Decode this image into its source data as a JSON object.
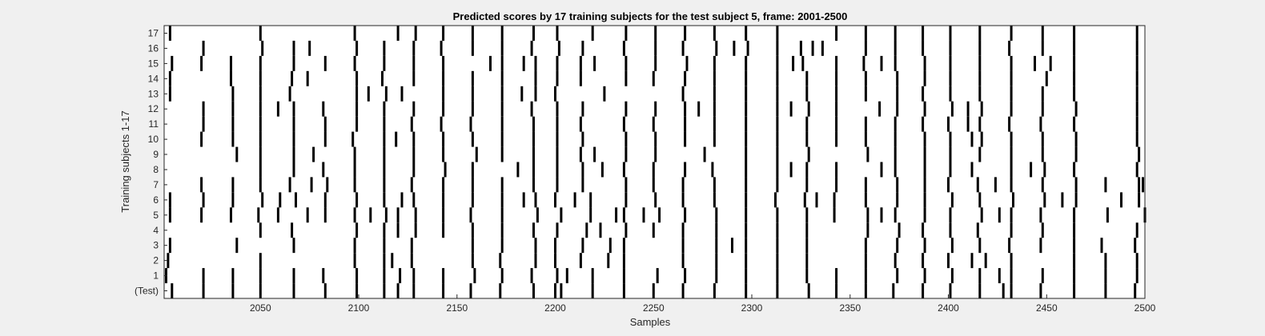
{
  "chart_data": {
    "type": "heatmap",
    "title": "Predicted scores by 17 training subjects for the test subject 5, frame: 2001-2500",
    "xlabel": "Samples",
    "ylabel": "Training subjects 1-17",
    "xlim": [
      2001,
      2500
    ],
    "x_ticks": [
      2050,
      2100,
      2150,
      2200,
      2250,
      2300,
      2350,
      2400,
      2450,
      2500
    ],
    "row_labels": [
      "(Test)",
      "1",
      "2",
      "3",
      "4",
      "5",
      "6",
      "7",
      "8",
      "9",
      "10",
      "11",
      "12",
      "13",
      "14",
      "15",
      "16",
      "17"
    ],
    "grid": false,
    "colors": {
      "background": "#ffffff",
      "mark": "#000000",
      "figure": "#f0f0f0"
    },
    "note": "Each row shows sample indices (in frame 2001-2500) where the predicted score is marked (black) for that subject.",
    "rows": [
      {
        "label": "(Test)",
        "marks": [
          2005,
          2021,
          2036,
          2050,
          2067,
          2083,
          2099,
          2113,
          2120,
          2128,
          2143,
          2157,
          2172,
          2189,
          2200,
          2203,
          2219,
          2235,
          2250,
          2265,
          2281,
          2297,
          2313,
          2329,
          2343,
          2358,
          2372,
          2387,
          2401,
          2416,
          2428,
          2432,
          2447,
          2464,
          2480,
          2495
        ]
      },
      {
        "label": "1",
        "marks": [
          2002,
          2021,
          2036,
          2050,
          2067,
          2082,
          2099,
          2113,
          2121,
          2128,
          2143,
          2159,
          2173,
          2188,
          2201,
          2206,
          2219,
          2235,
          2252,
          2266,
          2282,
          2297,
          2313,
          2328,
          2343,
          2358,
          2374,
          2388,
          2402,
          2416,
          2426,
          2432,
          2448,
          2464,
          2480,
          2496
        ]
      },
      {
        "label": "2",
        "marks": [
          2003,
          2050,
          2098,
          2113,
          2117,
          2127,
          2158,
          2172,
          2190,
          2200,
          2213,
          2227,
          2235,
          2265,
          2282,
          2297,
          2313,
          2328,
          2358,
          2373,
          2387,
          2400,
          2412,
          2419,
          2432,
          2464,
          2480,
          2496
        ]
      },
      {
        "label": "3",
        "marks": [
          2004,
          2038,
          2067,
          2098,
          2113,
          2127,
          2158,
          2173,
          2190,
          2200,
          2214,
          2228,
          2235,
          2265,
          2282,
          2290,
          2297,
          2313,
          2328,
          2358,
          2374,
          2388,
          2402,
          2416,
          2431,
          2447,
          2464,
          2478,
          2495
        ]
      },
      {
        "label": "4",
        "marks": [
          2050,
          2066,
          2099,
          2113,
          2120,
          2129,
          2143,
          2158,
          2173,
          2189,
          2201,
          2216,
          2223,
          2236,
          2250,
          2265,
          2282,
          2297,
          2313,
          2328,
          2359,
          2375,
          2387,
          2401,
          2415,
          2432,
          2448,
          2464,
          2496
        ]
      },
      {
        "label": "5",
        "marks": [
          2004,
          2020,
          2035,
          2049,
          2059,
          2074,
          2083,
          2098,
          2106,
          2114,
          2120,
          2129,
          2143,
          2157,
          2173,
          2191,
          2203,
          2218,
          2231,
          2235,
          2245,
          2253,
          2266,
          2282,
          2297,
          2313,
          2328,
          2342,
          2359,
          2366,
          2373,
          2388,
          2401,
          2417,
          2426,
          2432,
          2447,
          2464,
          2481,
          2500
        ]
      },
      {
        "label": "6",
        "marks": [
          2004,
          2021,
          2036,
          2051,
          2060,
          2068,
          2083,
          2099,
          2113,
          2122,
          2128,
          2143,
          2158,
          2173,
          2184,
          2190,
          2200,
          2210,
          2218,
          2236,
          2251,
          2265,
          2281,
          2297,
          2312,
          2327,
          2333,
          2342,
          2358,
          2374,
          2388,
          2402,
          2416,
          2433,
          2449,
          2458,
          2465,
          2488,
          2497
        ]
      },
      {
        "label": "7",
        "marks": [
          2020,
          2036,
          2050,
          2065,
          2076,
          2084,
          2098,
          2113,
          2127,
          2143,
          2158,
          2173,
          2189,
          2201,
          2214,
          2236,
          2250,
          2265,
          2281,
          2297,
          2313,
          2328,
          2343,
          2358,
          2374,
          2388,
          2400,
          2415,
          2424,
          2432,
          2448,
          2465,
          2480,
          2497,
          2499
        ]
      },
      {
        "label": "8",
        "marks": [
          2050,
          2067,
          2082,
          2098,
          2113,
          2128,
          2144,
          2158,
          2181,
          2189,
          2201,
          2214,
          2224,
          2235,
          2250,
          2266,
          2280,
          2297,
          2313,
          2320,
          2328,
          2343,
          2366,
          2373,
          2388,
          2401,
          2412,
          2432,
          2442,
          2449,
          2464,
          2496
        ]
      },
      {
        "label": "9",
        "marks": [
          2038,
          2050,
          2067,
          2077,
          2098,
          2113,
          2128,
          2143,
          2160,
          2173,
          2189,
          2201,
          2213,
          2220,
          2236,
          2251,
          2276,
          2297,
          2313,
          2329,
          2359,
          2373,
          2388,
          2401,
          2416,
          2432,
          2448,
          2465,
          2497
        ]
      },
      {
        "label": "10",
        "marks": [
          2020,
          2036,
          2050,
          2067,
          2083,
          2097,
          2113,
          2119,
          2128,
          2143,
          2158,
          2173,
          2189,
          2201,
          2214,
          2236,
          2251,
          2266,
          2281,
          2297,
          2313,
          2328,
          2343,
          2358,
          2373,
          2388,
          2401,
          2412,
          2417,
          2432,
          2448,
          2465,
          2496
        ]
      },
      {
        "label": "11",
        "marks": [
          2021,
          2036,
          2050,
          2067,
          2083,
          2099,
          2113,
          2127,
          2142,
          2157,
          2173,
          2189,
          2201,
          2213,
          2235,
          2250,
          2266,
          2281,
          2297,
          2313,
          2328,
          2343,
          2358,
          2373,
          2387,
          2400,
          2410,
          2416,
          2431,
          2447,
          2464,
          2496
        ]
      },
      {
        "label": "12",
        "marks": [
          2021,
          2036,
          2050,
          2059,
          2067,
          2082,
          2099,
          2113,
          2128,
          2143,
          2158,
          2173,
          2188,
          2201,
          2214,
          2236,
          2251,
          2266,
          2273,
          2281,
          2297,
          2313,
          2320,
          2329,
          2343,
          2365,
          2374,
          2388,
          2402,
          2410,
          2417,
          2432,
          2448,
          2465,
          2496
        ]
      },
      {
        "label": "13",
        "marks": [
          2004,
          2036,
          2050,
          2065,
          2099,
          2105,
          2114,
          2122,
          2143,
          2158,
          2173,
          2183,
          2190,
          2200,
          2225,
          2265,
          2281,
          2297,
          2313,
          2328,
          2343,
          2358,
          2374,
          2387,
          2401,
          2416,
          2432,
          2448,
          2464,
          2496
        ]
      },
      {
        "label": "14",
        "marks": [
          2004,
          2035,
          2050,
          2066,
          2074,
          2099,
          2112,
          2128,
          2143,
          2158,
          2173,
          2190,
          2201,
          2213,
          2236,
          2250,
          2266,
          2281,
          2297,
          2313,
          2328,
          2343,
          2358,
          2374,
          2388,
          2401,
          2416,
          2432,
          2450,
          2464,
          2496
        ]
      },
      {
        "label": "15",
        "marks": [
          2005,
          2020,
          2035,
          2050,
          2067,
          2083,
          2098,
          2113,
          2128,
          2143,
          2167,
          2173,
          2184,
          2190,
          2201,
          2213,
          2220,
          2236,
          2251,
          2267,
          2281,
          2297,
          2313,
          2321,
          2326,
          2343,
          2357,
          2366,
          2373,
          2388,
          2401,
          2416,
          2432,
          2444,
          2452,
          2464,
          2496
        ]
      },
      {
        "label": "16",
        "marks": [
          2021,
          2051,
          2067,
          2075,
          2099,
          2113,
          2128,
          2142,
          2158,
          2173,
          2188,
          2202,
          2214,
          2235,
          2251,
          2265,
          2282,
          2291,
          2298,
          2313,
          2325,
          2331,
          2336,
          2358,
          2373,
          2387,
          2401,
          2416,
          2431,
          2448,
          2464,
          2496
        ]
      },
      {
        "label": "17",
        "marks": [
          2004,
          2050,
          2098,
          2120,
          2129,
          2143,
          2158,
          2173,
          2189,
          2201,
          2219,
          2236,
          2251,
          2266,
          2281,
          2297,
          2313,
          2343,
          2358,
          2373,
          2387,
          2401,
          2416,
          2432,
          2448,
          2464,
          2496
        ]
      }
    ]
  }
}
